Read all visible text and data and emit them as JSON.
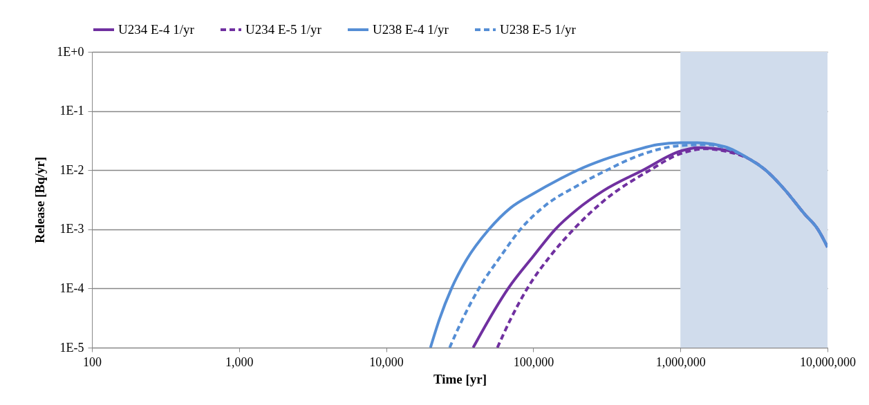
{
  "chart_data": {
    "type": "line",
    "xlabel": "Time [yr]",
    "ylabel": "Release [Bq/yr]",
    "log": "xy",
    "grid": "y",
    "legend": "top",
    "xlim": [
      100,
      10000000
    ],
    "xticks": [
      {
        "value": 100,
        "label": "100"
      },
      {
        "value": 1000,
        "label": "1,000"
      },
      {
        "value": 10000,
        "label": "10,000"
      },
      {
        "value": 100000,
        "label": "100,000"
      },
      {
        "value": 1000000,
        "label": "1,000,000"
      },
      {
        "value": 10000000,
        "label": "10,000,000"
      }
    ],
    "ylim": [
      1e-05,
      1
    ],
    "yticks": [
      {
        "value": 1,
        "label": "1E+0"
      },
      {
        "value": 0.1,
        "label": "1E-1"
      },
      {
        "value": 0.01,
        "label": "1E-2"
      },
      {
        "value": 0.001,
        "label": "1E-3"
      },
      {
        "value": 0.0001,
        "label": "1E-4"
      },
      {
        "value": 1e-05,
        "label": "1E-5"
      }
    ],
    "bands": [
      {
        "axis": "x",
        "from": 1000000,
        "to": 10000000,
        "color": "#d0dcec"
      }
    ],
    "series": [
      {
        "name": "U234 E-4 1/yr",
        "color": "#7030a0",
        "line_style": "solid",
        "x": [
          39000,
          50000,
          67500,
          100000,
          141000,
          200000,
          300000,
          556000,
          1000000,
          1300000,
          2000000,
          3000000,
          3800000,
          5000000,
          7000000,
          8600000,
          10000000
        ],
        "values": [
          1e-05,
          3e-05,
          0.0001,
          0.00035,
          0.001,
          0.0022,
          0.0045,
          0.01,
          0.021,
          0.024,
          0.022,
          0.015,
          0.01,
          0.005,
          0.0018,
          0.001,
          0.0005
        ]
      },
      {
        "name": "U234 E-5 1/yr",
        "color": "#7030a0",
        "line_style": "dashed",
        "x": [
          57000,
          70000,
          91000,
          130000,
          188000,
          300000,
          620000,
          1000000,
          1500000,
          2000000,
          3000000,
          3800000,
          5000000,
          7000000,
          8600000,
          10000000
        ],
        "values": [
          1e-05,
          3e-05,
          0.0001,
          0.00035,
          0.001,
          0.003,
          0.01,
          0.019,
          0.023,
          0.021,
          0.015,
          0.01,
          0.005,
          0.0018,
          0.001,
          0.0005
        ]
      },
      {
        "name": "U238 E-4 1/yr",
        "color": "#558ed5",
        "line_style": "solid",
        "x": [
          20000,
          23000,
          27800,
          35000,
          50000,
          70000,
          100000,
          150000,
          200000,
          300000,
          500000,
          700000,
          1000000,
          1300000,
          2000000,
          3000000,
          3800000,
          5000000,
          7000000,
          8600000,
          10000000
        ],
        "values": [
          1e-05,
          3e-05,
          0.0001,
          0.0003,
          0.001,
          0.0023,
          0.004,
          0.007,
          0.01,
          0.015,
          0.022,
          0.027,
          0.029,
          0.029,
          0.025,
          0.015,
          0.01,
          0.005,
          0.0018,
          0.001,
          0.0005
        ]
      },
      {
        "name": "U238 E-5 1/yr",
        "color": "#558ed5",
        "line_style": "dashed",
        "x": [
          27000,
          33000,
          42700,
          60000,
          81800,
          120000,
          200000,
          316000,
          500000,
          1000000,
          1500000,
          2000000,
          3000000,
          3800000,
          5000000,
          7000000,
          8600000,
          10000000
        ],
        "values": [
          1e-05,
          3e-05,
          0.0001,
          0.00035,
          0.001,
          0.0025,
          0.0055,
          0.01,
          0.017,
          0.026,
          0.027,
          0.024,
          0.015,
          0.01,
          0.005,
          0.0018,
          0.001,
          0.0005
        ]
      }
    ]
  }
}
